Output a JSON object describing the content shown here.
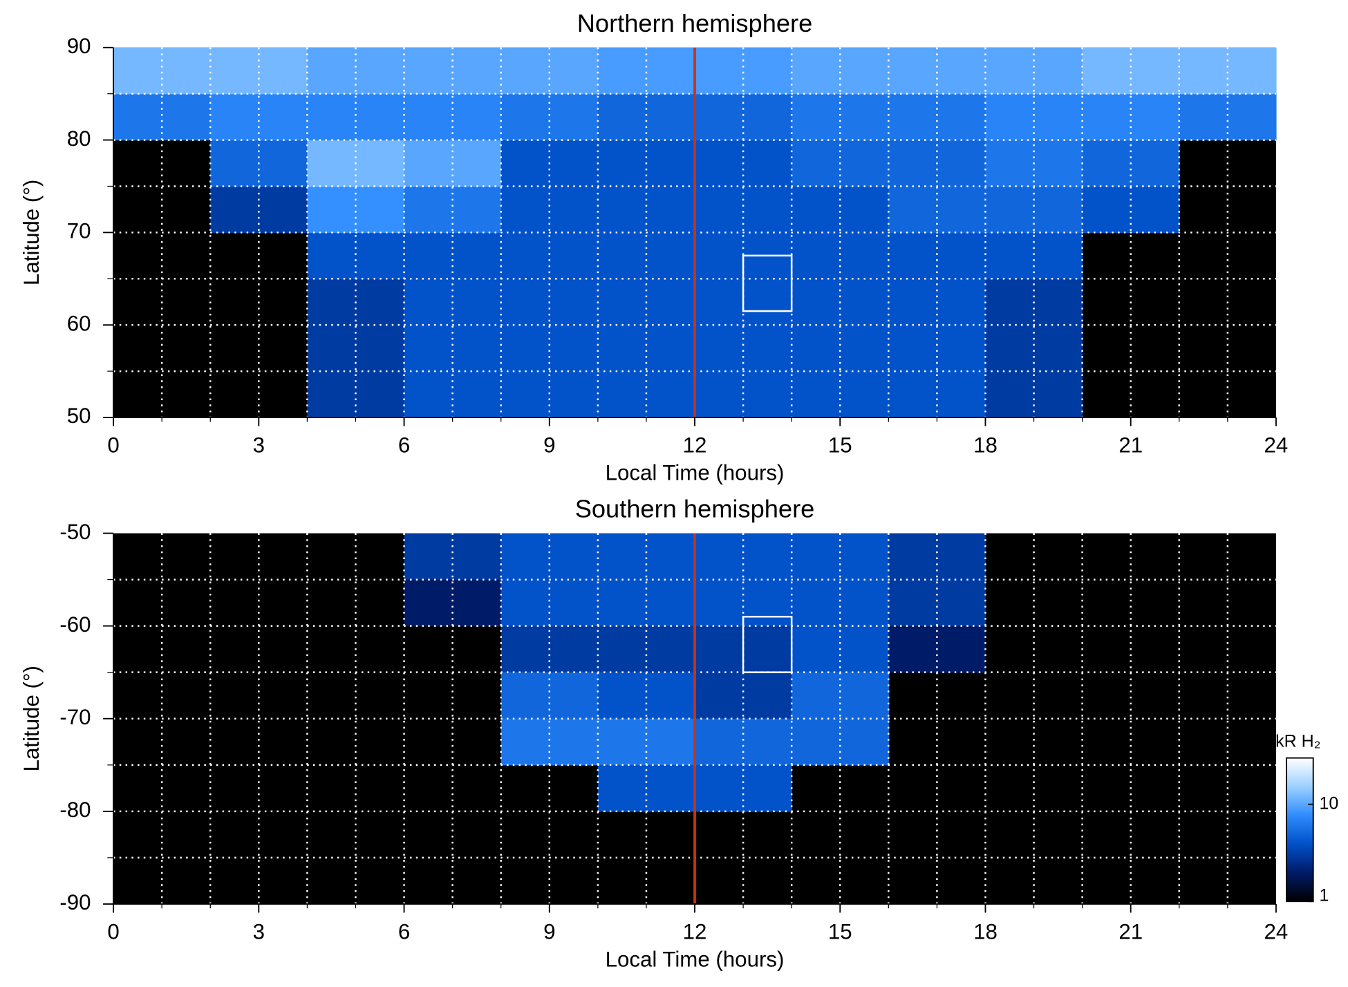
{
  "chart_data": [
    {
      "type": "heatmap",
      "title": "Northern hemisphere",
      "xlabel": "Local Time (hours)",
      "ylabel": "Latitude (°)",
      "x_edges": [
        0,
        2,
        4,
        6,
        8,
        10,
        12,
        14,
        16,
        18,
        20,
        22,
        24
      ],
      "y_edges": [
        50,
        55,
        60,
        65,
        70,
        75,
        80,
        85,
        90
      ],
      "values": [
        [
          null,
          null,
          3,
          4,
          4,
          4,
          4,
          4,
          4,
          3,
          null,
          null
        ],
        [
          null,
          null,
          3,
          4,
          4,
          4,
          4,
          4,
          4,
          3,
          null,
          null
        ],
        [
          null,
          null,
          3,
          4,
          4,
          4,
          4,
          4,
          4,
          3,
          null,
          null
        ],
        [
          null,
          null,
          4,
          4,
          4,
          4,
          4,
          4,
          4,
          4,
          null,
          null
        ],
        [
          null,
          3,
          8,
          6,
          4,
          4,
          4,
          4,
          5,
          5,
          4,
          null
        ],
        [
          null,
          5,
          12,
          10,
          4,
          4,
          4,
          5,
          5,
          6,
          5,
          null
        ],
        [
          6,
          7,
          7,
          7,
          6,
          5,
          5,
          6,
          6,
          7,
          7,
          6
        ],
        [
          12,
          12,
          10,
          10,
          10,
          9,
          9,
          10,
          10,
          10,
          12,
          12
        ]
      ],
      "xlim": [
        0,
        24
      ],
      "xticks": [
        0,
        3,
        6,
        9,
        12,
        15,
        18,
        21,
        24
      ],
      "ylim": [
        50,
        90
      ],
      "yticks": [
        50,
        60,
        70,
        80,
        90
      ],
      "xgrid": [
        1,
        2,
        3,
        4,
        5,
        6,
        7,
        8,
        9,
        10,
        11,
        12,
        13,
        14,
        15,
        16,
        17,
        18,
        19,
        20,
        21,
        22,
        23
      ],
      "ygrid": [
        55,
        60,
        65,
        70,
        75,
        80,
        85
      ],
      "vline": {
        "x": 12,
        "color": "#cc3311"
      },
      "box": {
        "x": [
          13,
          14
        ],
        "y": [
          61.5,
          67.5
        ]
      }
    },
    {
      "type": "heatmap",
      "title": "Southern hemisphere",
      "xlabel": "Local Time (hours)",
      "ylabel": "Latitude (°)",
      "x_edges": [
        0,
        2,
        4,
        6,
        8,
        10,
        12,
        14,
        16,
        18,
        20,
        22,
        24
      ],
      "y_edges": [
        -50,
        -55,
        -60,
        -65,
        -70,
        -75,
        -80,
        -85,
        -90
      ],
      "values": [
        [
          null,
          null,
          null,
          3,
          4,
          4,
          4,
          4,
          3,
          null,
          null,
          null
        ],
        [
          null,
          null,
          null,
          2,
          4,
          4,
          4,
          4,
          3,
          null,
          null,
          null
        ],
        [
          null,
          null,
          null,
          null,
          3,
          3,
          3,
          4,
          2,
          null,
          null,
          null
        ],
        [
          null,
          null,
          null,
          null,
          5,
          4,
          3,
          5,
          null,
          null,
          null,
          null
        ],
        [
          null,
          null,
          null,
          null,
          6,
          6,
          5,
          5,
          null,
          null,
          null,
          null
        ],
        [
          null,
          null,
          null,
          null,
          null,
          4,
          4,
          null,
          null,
          null,
          null,
          null
        ],
        [
          null,
          null,
          null,
          null,
          null,
          null,
          null,
          null,
          null,
          null,
          null,
          null
        ],
        [
          null,
          null,
          null,
          null,
          null,
          null,
          null,
          null,
          null,
          null,
          null,
          null
        ]
      ],
      "xlim": [
        0,
        24
      ],
      "xticks": [
        0,
        3,
        6,
        9,
        12,
        15,
        18,
        21,
        24
      ],
      "ylim": [
        -90,
        -50
      ],
      "yticks": [
        -90,
        -80,
        -70,
        -60,
        -50
      ],
      "xgrid": [
        1,
        2,
        3,
        4,
        5,
        6,
        7,
        8,
        9,
        10,
        11,
        12,
        13,
        14,
        15,
        16,
        17,
        18,
        19,
        20,
        21,
        22,
        23
      ],
      "ygrid": [
        -55,
        -60,
        -65,
        -70,
        -75,
        -80,
        -85
      ],
      "vline": {
        "x": 12,
        "color": "#cc3311"
      },
      "box": {
        "x": [
          13,
          14
        ],
        "y": [
          -59,
          -65
        ]
      },
      "colorbar": {
        "label": "kR H₂",
        "lim": [
          1,
          30
        ],
        "ticks": [
          1,
          10
        ],
        "log": true,
        "colormap": [
          "#000000",
          "#001a66",
          "#0050c8",
          "#2f8cff",
          "#9cd0ff",
          "#ffffff"
        ]
      }
    }
  ]
}
